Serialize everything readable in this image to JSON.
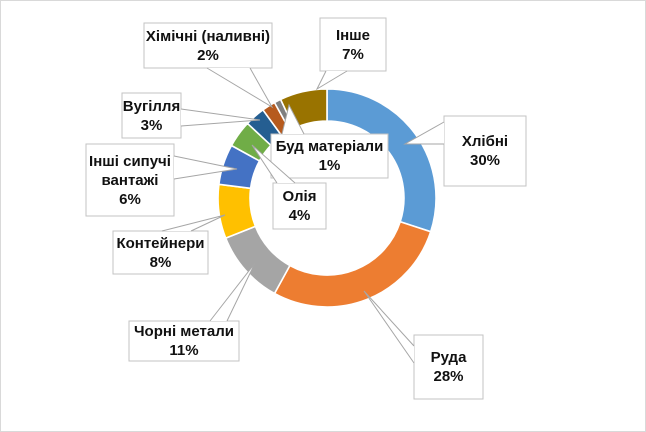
{
  "chart_data": {
    "type": "doughnut",
    "title": "",
    "unit": "%",
    "direction": "clockwise",
    "start_angle_deg": 0,
    "hole_ratio": 0.71,
    "legend": "none",
    "label_style": "callout boxes with percent, leader pointers",
    "segments": [
      {
        "label": "Хлібні",
        "value": 30,
        "pct_label": "30%",
        "color": "#5B9BD5",
        "lines": [
          "Хлібні",
          "30%"
        ]
      },
      {
        "label": "Руда",
        "value": 28,
        "pct_label": "28%",
        "color": "#ED7D31",
        "lines": [
          "Руда",
          "28%"
        ]
      },
      {
        "label": "Чорні метали",
        "value": 11,
        "pct_label": "11%",
        "color": "#A5A5A5",
        "lines": [
          "Чорні метали",
          "11%"
        ]
      },
      {
        "label": "Контейнери",
        "value": 8,
        "pct_label": "8%",
        "color": "#FFC000",
        "lines": [
          "Контейнери",
          "8%"
        ]
      },
      {
        "label": "Інші сипучі вантажі",
        "value": 6,
        "pct_label": "6%",
        "color": "#4472C4",
        "lines": [
          "Інші сипучі",
          "вантажі",
          "6%"
        ]
      },
      {
        "label": "Олія",
        "value": 4,
        "pct_label": "4%",
        "color": "#70AD47",
        "lines": [
          "Олія",
          "4%"
        ]
      },
      {
        "label": "Вугілля",
        "value": 3,
        "pct_label": "3%",
        "color": "#255E91",
        "lines": [
          "Вугілля",
          "3%"
        ]
      },
      {
        "label": "Хімічні (наливні)",
        "value": 2,
        "pct_label": "2%",
        "color": "#B65A1E",
        "lines": [
          "Хімічні (наливні)",
          "2%"
        ]
      },
      {
        "label": "Буд матеріали",
        "value": 1,
        "pct_label": "1%",
        "color": "#7F7F7F",
        "lines": [
          "Буд матеріали",
          "1%"
        ]
      },
      {
        "label": "Інше",
        "value": 7,
        "pct_label": "7%",
        "color": "#997300",
        "lines": [
          "Інше",
          "7%"
        ]
      }
    ],
    "colors": {
      "background": "#FFFFFF",
      "frame_border": "#D9D9D9",
      "slice_separator": "#FFFFFF",
      "leader_line": "#A6A6A6",
      "callout_border": "#C3C3C3",
      "callout_fill": "#FFFFFF",
      "text": "#111111"
    }
  }
}
